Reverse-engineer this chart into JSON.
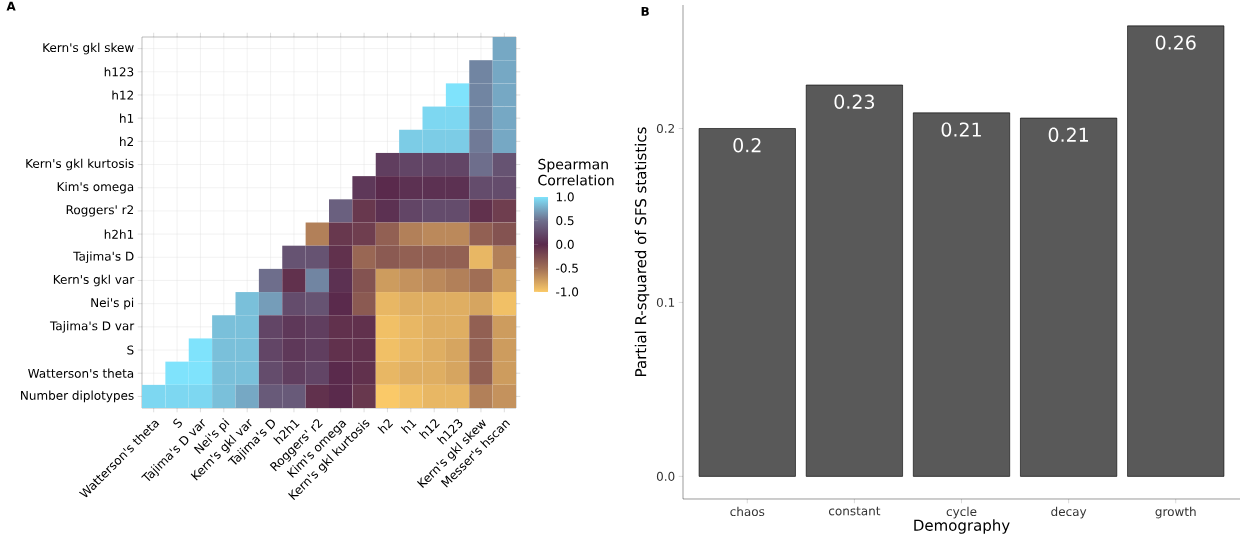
{
  "chart_data": [
    {
      "type": "heatmap",
      "title": "A",
      "clabel": "Spearman Correlation",
      "grid": true,
      "categories": [
        "Watterson's theta",
        "S",
        "Tajima's D var",
        "Nei's pi",
        "Kern's gkl var",
        "Tajima's D",
        "h2h1",
        "Roggers' r2",
        "Kim's omega",
        "Kern's gkl kurtosis",
        "h2",
        "h1",
        "h12",
        "h123",
        "Kern's gkl skew",
        "Messer's hscan"
      ],
      "y_categories": [
        "Kern's gkl skew",
        "h123",
        "h12",
        "h1",
        "h2",
        "Kern's gkl kurtosis",
        "Kim's omega",
        "Roggers' r2",
        "h2h1",
        "Tajima's D",
        "Kern's gkl var",
        "Nei's pi",
        "Tajima's D var",
        "S",
        "Watterson's theta",
        "Number diplotypes"
      ],
      "cells": [
        [
          null,
          null,
          null,
          null,
          null,
          null,
          null,
          null,
          null,
          null,
          null,
          null,
          null,
          null,
          null,
          0.75
        ],
        [
          null,
          null,
          null,
          null,
          null,
          null,
          null,
          null,
          null,
          null,
          null,
          null,
          null,
          null,
          0.6,
          0.75
        ],
        [
          null,
          null,
          null,
          null,
          null,
          null,
          null,
          null,
          null,
          null,
          null,
          null,
          null,
          1.0,
          0.6,
          0.75
        ],
        [
          null,
          null,
          null,
          null,
          null,
          null,
          null,
          null,
          null,
          null,
          null,
          null,
          0.95,
          0.95,
          0.6,
          0.75
        ],
        [
          null,
          null,
          null,
          null,
          null,
          null,
          null,
          null,
          null,
          null,
          null,
          0.9,
          0.9,
          0.9,
          0.55,
          0.75
        ],
        [
          null,
          null,
          null,
          null,
          null,
          null,
          null,
          null,
          null,
          null,
          0.15,
          0.2,
          0.2,
          0.2,
          0.5,
          0.3
        ],
        [
          null,
          null,
          null,
          null,
          null,
          null,
          null,
          null,
          null,
          0.1,
          0.0,
          0.05,
          0.05,
          0.05,
          0.25,
          0.25
        ],
        [
          null,
          null,
          null,
          null,
          null,
          null,
          null,
          null,
          0.4,
          -0.1,
          0.05,
          0.2,
          0.25,
          0.25,
          -0.05,
          -0.15
        ],
        [
          null,
          null,
          null,
          null,
          null,
          null,
          null,
          -0.6,
          -0.1,
          -0.15,
          -0.4,
          -0.6,
          -0.65,
          -0.65,
          -0.4,
          -0.3
        ],
        [
          null,
          null,
          null,
          null,
          null,
          null,
          0.3,
          0.3,
          -0.05,
          -0.45,
          -0.35,
          -0.4,
          -0.4,
          -0.4,
          -0.9,
          -0.6
        ],
        [
          null,
          null,
          null,
          null,
          null,
          0.5,
          -0.05,
          0.6,
          0.05,
          -0.3,
          -0.75,
          -0.7,
          -0.65,
          -0.6,
          -0.5,
          -0.75
        ],
        [
          null,
          null,
          null,
          null,
          0.85,
          0.7,
          0.25,
          0.3,
          0.0,
          -0.35,
          -0.9,
          -0.85,
          -0.85,
          -0.85,
          -0.8,
          -0.95
        ],
        [
          null,
          null,
          null,
          0.85,
          0.85,
          0.2,
          0.1,
          0.15,
          -0.05,
          -0.05,
          -0.95,
          -0.9,
          -0.85,
          -0.85,
          -0.4,
          -0.75
        ],
        [
          null,
          null,
          1.0,
          0.85,
          0.85,
          0.2,
          0.1,
          0.15,
          -0.05,
          -0.05,
          -0.95,
          -0.9,
          -0.85,
          -0.8,
          -0.4,
          -0.75
        ],
        [
          null,
          1.0,
          1.0,
          0.85,
          0.85,
          0.25,
          0.15,
          0.2,
          0.0,
          -0.05,
          -0.9,
          -0.85,
          -0.85,
          -0.8,
          -0.4,
          -0.75
        ],
        [
          0.95,
          0.95,
          0.95,
          0.85,
          0.75,
          0.35,
          0.35,
          -0.05,
          0.0,
          -0.1,
          -1.0,
          -0.95,
          -0.9,
          -0.9,
          -0.6,
          -0.7
        ]
      ],
      "clim": [
        -1,
        1
      ],
      "cticks": [
        {
          "value": 1,
          "label": "1.0"
        },
        {
          "value": 0.5,
          "label": "0.5"
        },
        {
          "value": 0,
          "label": "0.0"
        },
        {
          "value": -0.5,
          "label": "-0.5"
        },
        {
          "value": -1,
          "label": "-1.0"
        }
      ]
    },
    {
      "type": "bar",
      "title": "B",
      "xlabel": "Demography",
      "ylabel": "Partial R-squared of SFS statistics",
      "categories": [
        "chaos",
        "constant",
        "cycle",
        "decay",
        "growth"
      ],
      "values": [
        0.2,
        0.225,
        0.209,
        0.206,
        0.259
      ],
      "value_labels": [
        "0.2",
        "0.23",
        "0.21",
        "0.21",
        "0.26"
      ],
      "color": "#595959",
      "ylim": [
        -0.013,
        0.271
      ],
      "yticks": [
        {
          "value": 0,
          "label": "0.0"
        },
        {
          "value": 0.1,
          "label": "0.1"
        },
        {
          "value": 0.2,
          "label": "0.2"
        }
      ]
    }
  ]
}
